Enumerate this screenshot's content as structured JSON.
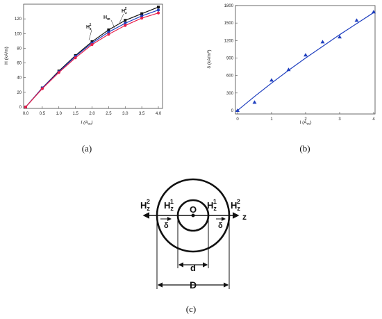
{
  "chart_data": [
    {
      "panel": "(a)",
      "type": "line",
      "xlabel": "I (A",
      "xlabel_sub": "av",
      "xlabel_close": ")",
      "ylabel": "H (kA/m)",
      "xlim": [
        0,
        4
      ],
      "ylim": [
        0,
        140
      ],
      "x_ticks": [
        "0.0",
        "0.5",
        "1.0",
        "1.5",
        "2.0",
        "2.5",
        "3.0",
        "3.5",
        "4.0"
      ],
      "y_ticks": [
        "0",
        "20",
        "40",
        "60",
        "80",
        "100",
        "120"
      ],
      "x": [
        0,
        0.5,
        1.0,
        1.5,
        2.0,
        2.5,
        3.0,
        3.5,
        4.0
      ],
      "series": [
        {
          "name": "H",
          "name_sub": "z",
          "name_sup": "1",
          "color": "#111111",
          "marker": "square",
          "values": [
            0,
            26,
            49,
            70,
            89,
            105,
            118,
            127,
            136
          ]
        },
        {
          "name": "H",
          "name_sub": "m",
          "name_sup": "",
          "color": "#1f3fbf",
          "marker": "circle",
          "values": [
            0,
            26,
            48,
            69,
            87,
            102,
            114,
            124,
            132
          ]
        },
        {
          "name": "H",
          "name_sub": "z",
          "name_sup": "2",
          "color": "#e8204a",
          "marker": "circle",
          "values": [
            0,
            25,
            47,
            67,
            85,
            99,
            111,
            121,
            128
          ]
        }
      ]
    },
    {
      "panel": "(b)",
      "type": "scatter",
      "xlabel": "I (A",
      "xlabel_sub": "av",
      "xlabel_close": ")",
      "ylabel": "δ (kA/m",
      "ylabel_sup": "2",
      "ylabel_close": ")",
      "xlim": [
        0,
        4
      ],
      "ylim": [
        -60,
        1800
      ],
      "x_ticks": [
        "0",
        "1",
        "2",
        "3",
        "4"
      ],
      "y_ticks": [
        "0",
        "300",
        "600",
        "900",
        "1200",
        "1500",
        "1800"
      ],
      "points": {
        "x": [
          0,
          0.5,
          1.0,
          1.5,
          2.0,
          2.5,
          3.0,
          3.5,
          4.0
        ],
        "y": [
          0,
          140,
          520,
          700,
          950,
          1175,
          1260,
          1545,
          1690
        ]
      },
      "fit": {
        "x": [
          0,
          0.5,
          1.0,
          1.5,
          2.0,
          2.5,
          3.0,
          3.5,
          4.0
        ],
        "y": [
          0,
          240,
          470,
          690,
          900,
          1100,
          1300,
          1490,
          1680
        ]
      },
      "color": "#1f3fbf"
    }
  ],
  "diagram": {
    "panel": "(c)",
    "labels": {
      "H": "H",
      "sub_z": "z",
      "sup_1": "1",
      "sup_2": "2",
      "origin": "O",
      "axis": "z",
      "delta": "δ",
      "small_d": "d",
      "big_d": "D"
    }
  },
  "captions": {
    "a": "(a)",
    "b": "(b)",
    "c": "(c)"
  }
}
